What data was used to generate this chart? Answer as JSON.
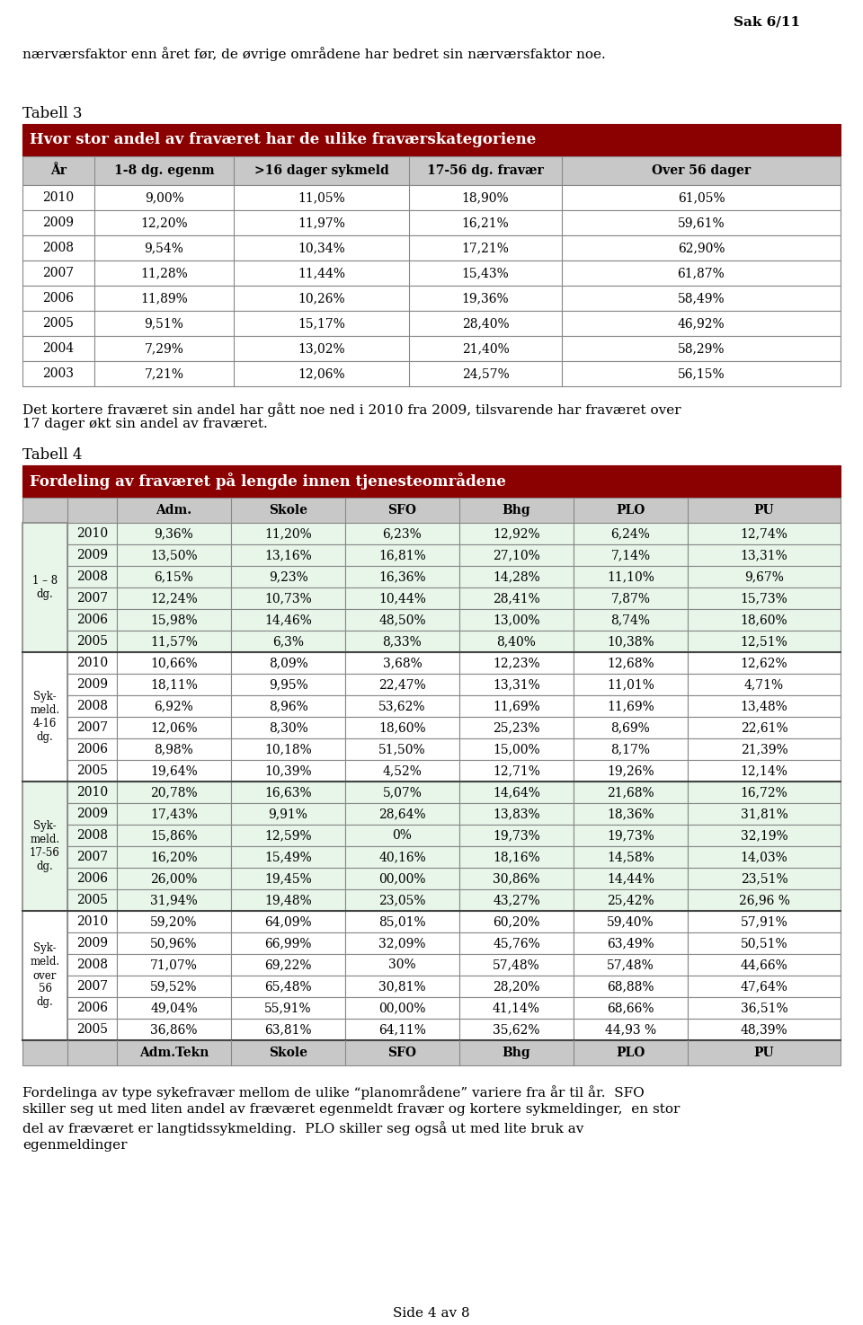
{
  "page_header": "Sak 6/11",
  "intro_text": "nærværsfaktor enn året før, de øvrige områdene har bedret sin nærværsfaktor noe.",
  "tabell3_label": "Tabell 3",
  "tabell3_title": "Hvor stor andel av fraværet har de ulike fraværskategoriene",
  "tabell3_headers": [
    "År",
    "1-8 dg. egenm",
    ">16 dager sykmeld",
    "17-56 dg. fravær",
    "Over 56 dager"
  ],
  "tabell3_data": [
    [
      "2010",
      "9,00%",
      "11,05%",
      "18,90%",
      "61,05%"
    ],
    [
      "2009",
      "12,20%",
      "11,97%",
      "16,21%",
      "59,61%"
    ],
    [
      "2008",
      "9,54%",
      "10,34%",
      "17,21%",
      "62,90%"
    ],
    [
      "2007",
      "11,28%",
      "11,44%",
      "15,43%",
      "61,87%"
    ],
    [
      "2006",
      "11,89%",
      "10,26%",
      "19,36%",
      "58,49%"
    ],
    [
      "2005",
      "9,51%",
      "15,17%",
      "28,40%",
      "46,92%"
    ],
    [
      "2004",
      "7,29%",
      "13,02%",
      "21,40%",
      "58,29%"
    ],
    [
      "2003",
      "7,21%",
      "12,06%",
      "24,57%",
      "56,15%"
    ]
  ],
  "middle_text1": "Det kortere fraværet sin andel har gått noe ned i 2010 fra 2009, tilsvarende har fraværet over",
  "middle_text2": "17 dager økt sin andel av fraværet.",
  "tabell4_label": "Tabell 4",
  "tabell4_title": "Fordeling av fraværet på lengde innen tjenesteområdene",
  "tabell4_sections": [
    {
      "row_label": "1 – 8\ndg.",
      "years": [
        "2010",
        "2009",
        "2008",
        "2007",
        "2006",
        "2005"
      ],
      "data": [
        [
          "9,36%",
          "11,20%",
          "6,23%",
          "12,92%",
          "6,24%",
          "12,74%"
        ],
        [
          "13,50%",
          "13,16%",
          "16,81%",
          "27,10%",
          "7,14%",
          "13,31%"
        ],
        [
          "6,15%",
          "9,23%",
          "16,36%",
          "14,28%",
          "11,10%",
          "9,67%"
        ],
        [
          "12,24%",
          "10,73%",
          "10,44%",
          "28,41%",
          "7,87%",
          "15,73%"
        ],
        [
          "15,98%",
          "14,46%",
          "48,50%",
          "13,00%",
          "8,74%",
          "18,60%"
        ],
        [
          "11,57%",
          "6,3%",
          "8,33%",
          "8,40%",
          "10,38%",
          "12,51%"
        ]
      ],
      "bg_color": "#e8f5e9"
    },
    {
      "row_label": "Syk-\nmeld.\n4-16\ndg.",
      "years": [
        "2010",
        "2009",
        "2008",
        "2007",
        "2006",
        "2005"
      ],
      "data": [
        [
          "10,66%",
          "8,09%",
          "3,68%",
          "12,23%",
          "12,68%",
          "12,62%"
        ],
        [
          "18,11%",
          "9,95%",
          "22,47%",
          "13,31%",
          "11,01%",
          "4,71%"
        ],
        [
          "6,92%",
          "8,96%",
          "53,62%",
          "11,69%",
          "11,69%",
          "13,48%"
        ],
        [
          "12,06%",
          "8,30%",
          "18,60%",
          "25,23%",
          "8,69%",
          "22,61%"
        ],
        [
          "8,98%",
          "10,18%",
          "51,50%",
          "15,00%",
          "8,17%",
          "21,39%"
        ],
        [
          "19,64%",
          "10,39%",
          "4,52%",
          "12,71%",
          "19,26%",
          "12,14%"
        ]
      ],
      "bg_color": "#ffffff"
    },
    {
      "row_label": "Syk-\nmeld.\n17-56\ndg.",
      "years": [
        "2010",
        "2009",
        "2008",
        "2007",
        "2006",
        "2005"
      ],
      "data": [
        [
          "20,78%",
          "16,63%",
          "5,07%",
          "14,64%",
          "21,68%",
          "16,72%"
        ],
        [
          "17,43%",
          "9,91%",
          "28,64%",
          "13,83%",
          "18,36%",
          "31,81%"
        ],
        [
          "15,86%",
          "12,59%",
          "0%",
          "19,73%",
          "19,73%",
          "32,19%"
        ],
        [
          "16,20%",
          "15,49%",
          "40,16%",
          "18,16%",
          "14,58%",
          "14,03%"
        ],
        [
          "26,00%",
          "19,45%",
          "00,00%",
          "30,86%",
          "14,44%",
          "23,51%"
        ],
        [
          "31,94%",
          "19,48%",
          "23,05%",
          "43,27%",
          "25,42%",
          "26,96 %"
        ]
      ],
      "bg_color": "#e8f5e9"
    },
    {
      "row_label": "Syk-\nmeld.\nover\n56\ndg.",
      "years": [
        "2010",
        "2009",
        "2008",
        "2007",
        "2006",
        "2005"
      ],
      "data": [
        [
          "59,20%",
          "64,09%",
          "85,01%",
          "60,20%",
          "59,40%",
          "57,91%"
        ],
        [
          "50,96%",
          "66,99%",
          "32,09%",
          "45,76%",
          "63,49%",
          "50,51%"
        ],
        [
          "71,07%",
          "69,22%",
          "30%",
          "57,48%",
          "57,48%",
          "44,66%"
        ],
        [
          "59,52%",
          "65,48%",
          "30,81%",
          "28,20%",
          "68,88%",
          "47,64%"
        ],
        [
          "49,04%",
          "55,91%",
          "00,00%",
          "41,14%",
          "68,66%",
          "36,51%"
        ],
        [
          "36,86%",
          "63,81%",
          "64,11%",
          "35,62%",
          "44,93 %",
          "48,39%"
        ]
      ],
      "bg_color": "#ffffff"
    }
  ],
  "bottom_text": "Fordelinga av type sykefravær mellom de ulike “planområdene” variere fra år til år.  SFO\nskiller seg ut med liten andel av fræværet egenmeldt fravær og kortere sykmeldinger,  en stor\ndel av fræværet er langtidssykmelding.  PLO skiller seg også ut med lite bruk av\negenmeldinger",
  "page_footer": "Side 4 av 8",
  "header_bg": "#8B0000",
  "subheader_bg": "#c8c8c8",
  "border_color": "#888888"
}
